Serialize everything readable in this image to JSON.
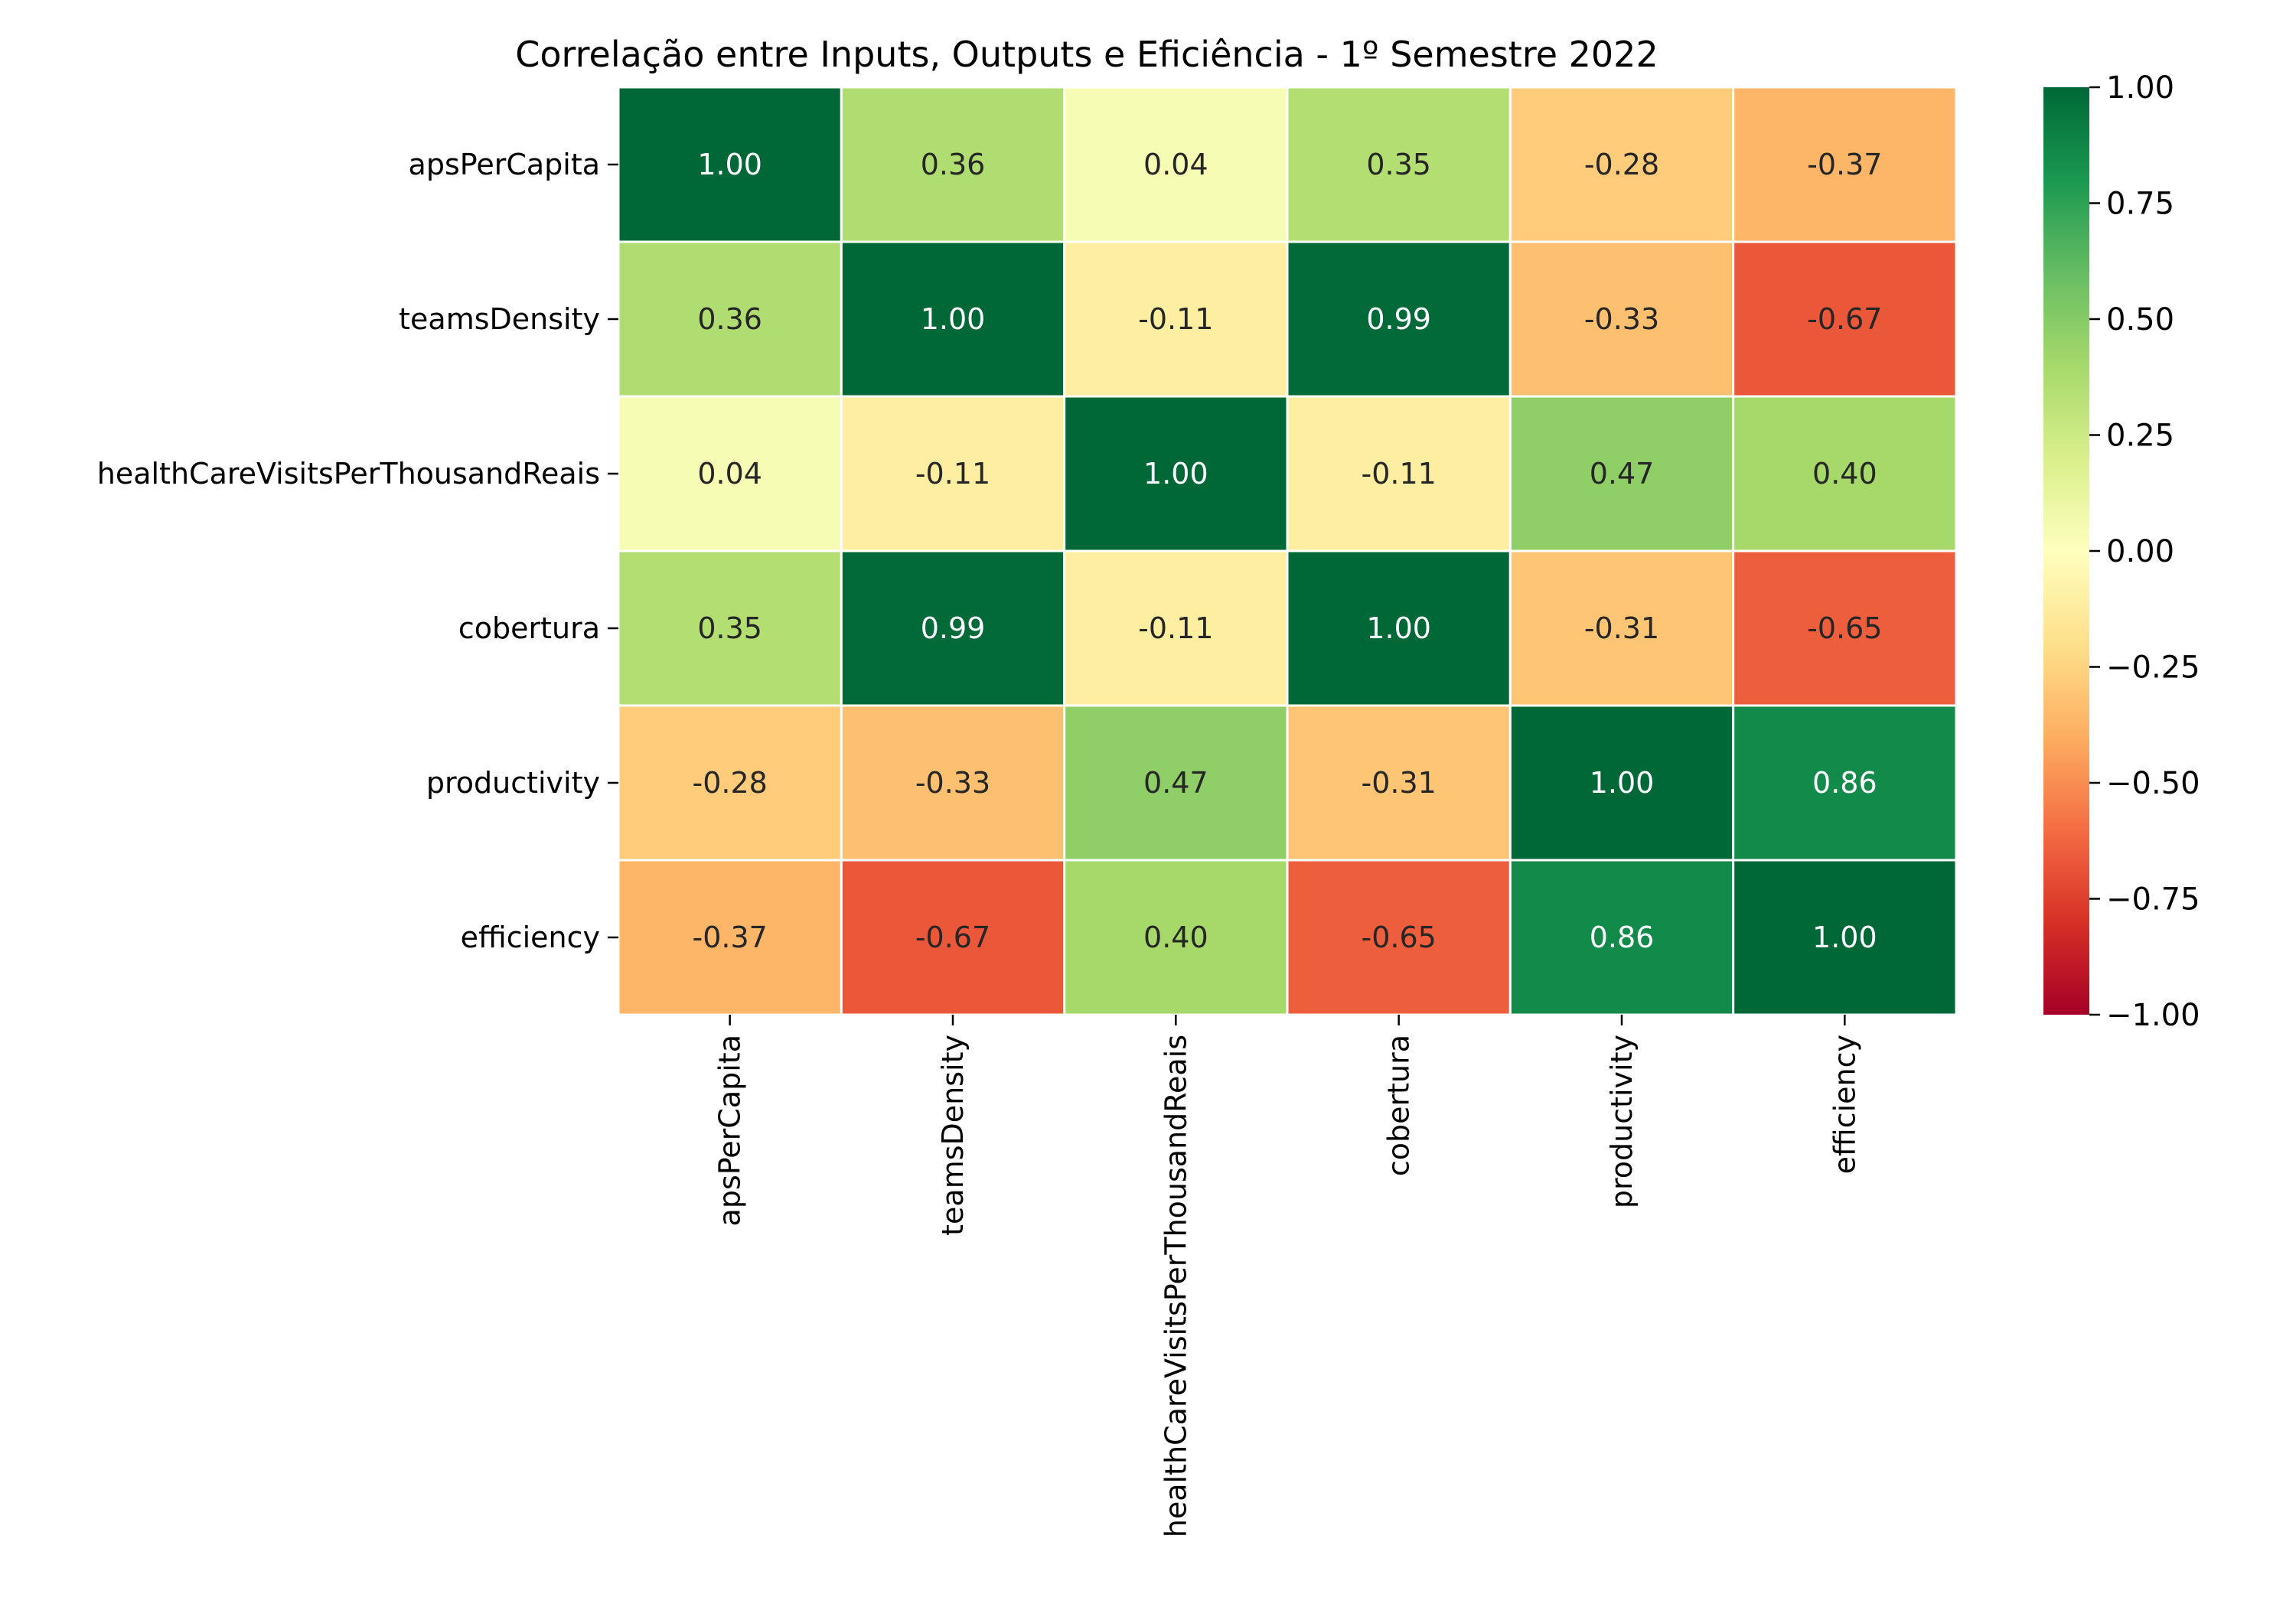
{
  "chart_data": {
    "type": "heatmap",
    "title": "Correlação entre Inputs, Outputs e Eficiência - 1º Semestre 2022",
    "xlabel": "",
    "ylabel": "",
    "x_categories": [
      "apsPerCapita",
      "teamsDensity",
      "healthCareVisitsPerThousandReais",
      "cobertura",
      "productivity",
      "efficiency"
    ],
    "y_categories": [
      "apsPerCapita",
      "teamsDensity",
      "healthCareVisitsPerThousandReais",
      "cobertura",
      "productivity",
      "efficiency"
    ],
    "values": [
      [
        1.0,
        0.36,
        0.04,
        0.35,
        -0.28,
        -0.37
      ],
      [
        0.36,
        1.0,
        -0.11,
        0.99,
        -0.33,
        -0.67
      ],
      [
        0.04,
        -0.11,
        1.0,
        -0.11,
        0.47,
        0.4
      ],
      [
        0.35,
        0.99,
        -0.11,
        1.0,
        -0.31,
        -0.65
      ],
      [
        -0.28,
        -0.33,
        0.47,
        -0.31,
        1.0,
        0.86
      ],
      [
        -0.37,
        -0.67,
        0.4,
        -0.65,
        0.86,
        1.0
      ]
    ],
    "value_labels": [
      [
        "1.00",
        "0.36",
        "0.04",
        "0.35",
        "-0.28",
        "-0.37"
      ],
      [
        "0.36",
        "1.00",
        "-0.11",
        "0.99",
        "-0.33",
        "-0.67"
      ],
      [
        "0.04",
        "-0.11",
        "1.00",
        "-0.11",
        "0.47",
        "0.40"
      ],
      [
        "0.35",
        "0.99",
        "-0.11",
        "1.00",
        "-0.31",
        "-0.65"
      ],
      [
        "-0.28",
        "-0.33",
        "0.47",
        "-0.31",
        "1.00",
        "0.86"
      ],
      [
        "-0.37",
        "-0.67",
        "0.40",
        "-0.65",
        "0.86",
        "1.00"
      ]
    ],
    "colorbar": {
      "vmin": -1.0,
      "vmax": 1.0,
      "ticks": [
        1.0,
        0.75,
        0.5,
        0.25,
        0.0,
        -0.25,
        -0.5,
        -0.75,
        -1.0
      ],
      "tick_labels": [
        "1.00",
        "0.75",
        "0.50",
        "0.25",
        "0.00",
        "−0.25",
        "−0.50",
        "−0.75",
        "−1.00"
      ],
      "colormap": "RdYlGn",
      "colormap_stops": [
        "#a50026",
        "#d73027",
        "#f46d43",
        "#fdae61",
        "#fee08b",
        "#ffffbf",
        "#d9ef8b",
        "#a6d96a",
        "#66bd63",
        "#1a9850",
        "#006837"
      ]
    },
    "cell_border_color": "#ffffff",
    "grid": false,
    "legend": "colorbar-right"
  }
}
